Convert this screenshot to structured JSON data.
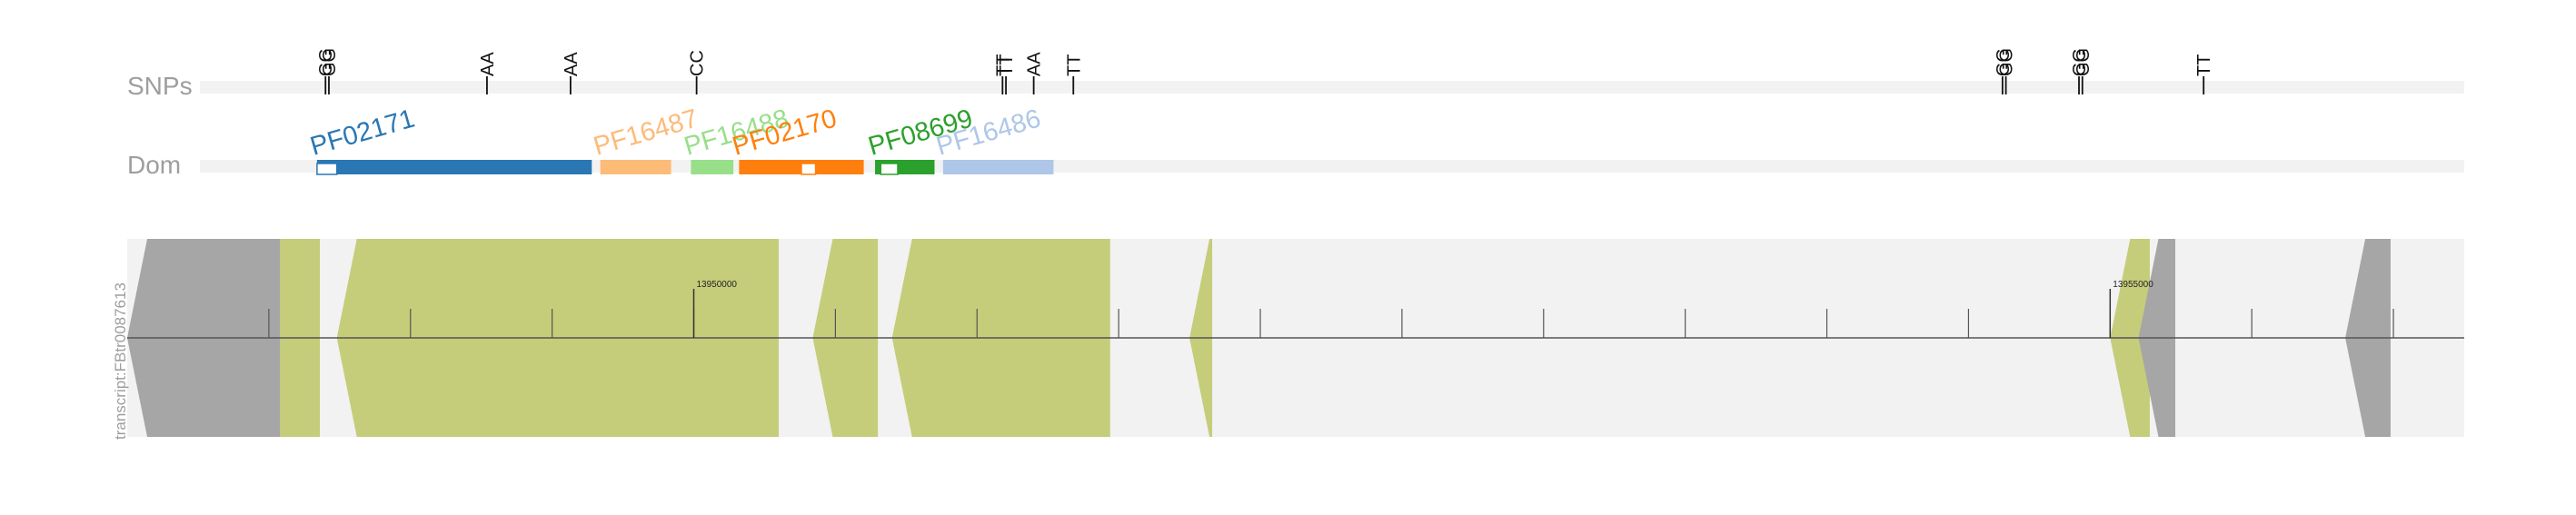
{
  "tracks": {
    "snps_label": "SNPs",
    "domains_label": "Dom",
    "transcript_label": "transcript:FBtr0087613"
  },
  "colors": {
    "track_bg": "#f2f2f2",
    "label": "#9e9e9e",
    "exon": "#c5cd7a",
    "utr": "#a6a6a6",
    "axis": "#555555"
  },
  "snps": [
    {
      "label": "GG",
      "pos": 13948700
    },
    {
      "label": "GG",
      "pos": 13948712
    },
    {
      "label": "AA",
      "pos": 13949270
    },
    {
      "label": "AA",
      "pos": 13949565
    },
    {
      "label": "CC",
      "pos": 13950010
    },
    {
      "label": "TT",
      "pos": 13951090
    },
    {
      "label": "TT",
      "pos": 13951102
    },
    {
      "label": "AA",
      "pos": 13951200
    },
    {
      "label": "TT",
      "pos": 13951340
    },
    {
      "label": "GG",
      "pos": 13954620
    },
    {
      "label": "GG",
      "pos": 13954632
    },
    {
      "label": "GG",
      "pos": 13954890
    },
    {
      "label": "GG",
      "pos": 13954902
    },
    {
      "label": "TT",
      "pos": 13955330
    }
  ],
  "domains": [
    {
      "name": "PF02171",
      "start": 13948670,
      "end": 13949640,
      "color": "#2a77b4",
      "gap": [
        13948670,
        13948740
      ]
    },
    {
      "name": "PF16487",
      "start": 13949670,
      "end": 13949920,
      "color": "#fdbb78",
      "gap": null
    },
    {
      "name": "PF16488",
      "start": 13949990,
      "end": 13950140,
      "color": "#98df8a",
      "gap": null
    },
    {
      "name": "PF02170",
      "start": 13950160,
      "end": 13950600,
      "color": "#ff7f0e",
      "gap": [
        13950380,
        13950430
      ]
    },
    {
      "name": "PF08699",
      "start": 13950640,
      "end": 13950850,
      "color": "#2ca02c",
      "gap": [
        13950660,
        13950720
      ]
    },
    {
      "name": "PF16486",
      "start": 13950880,
      "end": 13951270,
      "color": "#aec7e8",
      "gap": null
    }
  ],
  "segments": [
    {
      "type": "utr",
      "start": 13948000,
      "end": 13948540,
      "arrow_start": true,
      "arrow_end": false
    },
    {
      "type": "exon",
      "start": 13948540,
      "end": 13948680,
      "arrow_start": false,
      "arrow_end": false
    },
    {
      "type": "exon",
      "start": 13948740,
      "end": 13950300,
      "arrow_start": true,
      "arrow_end": false
    },
    {
      "type": "exon",
      "start": 13950420,
      "end": 13950650,
      "arrow_start": true,
      "arrow_end": false
    },
    {
      "type": "exon",
      "start": 13950700,
      "end": 13951470,
      "arrow_start": true,
      "arrow_end": false
    },
    {
      "type": "exon",
      "start": 13951750,
      "end": 13951830,
      "arrow_start": true,
      "arrow_end": false
    },
    {
      "type": "exon",
      "start": 13955000,
      "end": 13955140,
      "arrow_start": true,
      "arrow_end": false
    },
    {
      "type": "utr",
      "start": 13955100,
      "end": 13955230,
      "arrow_start": true,
      "arrow_end": false
    },
    {
      "type": "utr",
      "start": 13955830,
      "end": 13955990,
      "arrow_start": true,
      "arrow_end": false
    }
  ],
  "axis": {
    "start": 13948000,
    "end": 13956250,
    "minor_tick": 500,
    "major_ticks": [
      {
        "pos": 13950000,
        "label": "13950000"
      },
      {
        "pos": 13955000,
        "label": "13955000"
      }
    ]
  }
}
